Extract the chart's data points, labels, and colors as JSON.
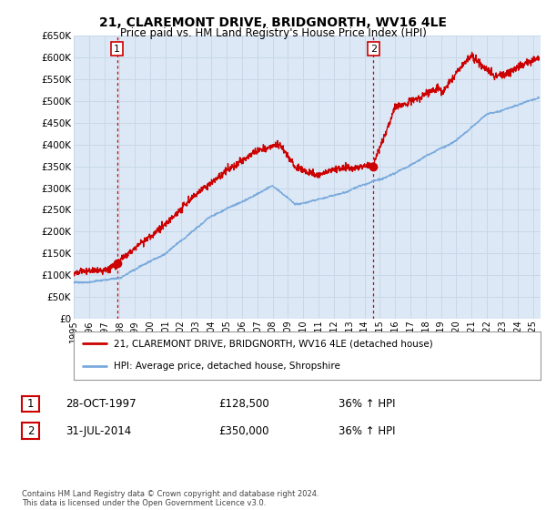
{
  "title": "21, CLAREMONT DRIVE, BRIDGNORTH, WV16 4LE",
  "subtitle": "Price paid vs. HM Land Registry's House Price Index (HPI)",
  "sale1_date": 1997.83,
  "sale1_price": 128500,
  "sale1_label": "1",
  "sale2_date": 2014.58,
  "sale2_price": 350000,
  "sale2_label": "2",
  "legend_line1": "21, CLAREMONT DRIVE, BRIDGNORTH, WV16 4LE (detached house)",
  "legend_line2": "HPI: Average price, detached house, Shropshire",
  "sale_marker_color": "#cc0000",
  "hpi_line_color": "#7aaadd",
  "property_line_color": "#cc0000",
  "vline_color": "#cc0000",
  "grid_color": "#c8d8e8",
  "plot_bg_color": "#dce8f5",
  "fig_bg_color": "#ffffff",
  "ylim": [
    0,
    650000
  ],
  "xlim": [
    1995,
    2025.5
  ],
  "yticks": [
    0,
    50000,
    100000,
    150000,
    200000,
    250000,
    300000,
    350000,
    400000,
    450000,
    500000,
    550000,
    600000,
    650000
  ],
  "xticks": [
    1995,
    1996,
    1997,
    1998,
    1999,
    2000,
    2001,
    2002,
    2003,
    2004,
    2005,
    2006,
    2007,
    2008,
    2009,
    2010,
    2011,
    2012,
    2013,
    2014,
    2015,
    2016,
    2017,
    2018,
    2019,
    2020,
    2021,
    2022,
    2023,
    2024,
    2025
  ],
  "row1_date": "28-OCT-1997",
  "row1_price": "£128,500",
  "row1_hpi": "36% ↑ HPI",
  "row2_date": "31-JUL-2014",
  "row2_price": "£350,000",
  "row2_hpi": "36% ↑ HPI",
  "footer": "Contains HM Land Registry data © Crown copyright and database right 2024.\nThis data is licensed under the Open Government Licence v3.0."
}
